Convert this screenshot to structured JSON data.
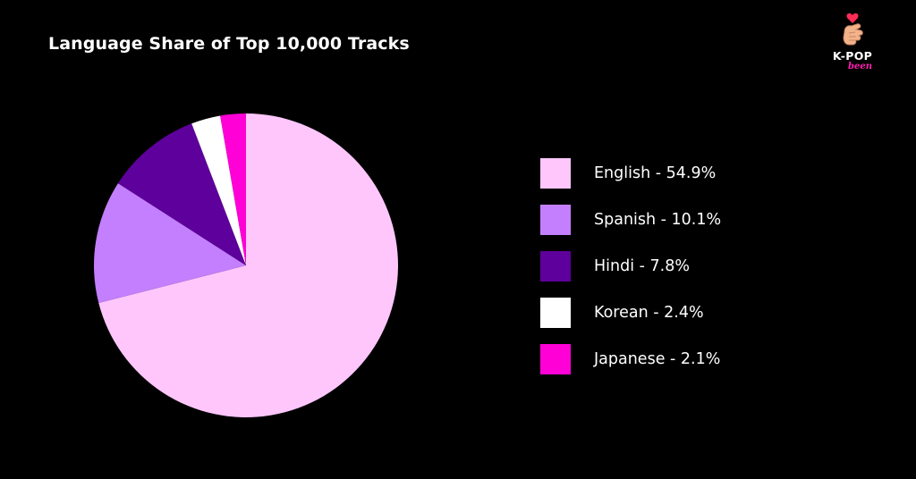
{
  "chart_data": {
    "type": "pie",
    "title": "Language Share of Top 10,000 Tracks",
    "legend_position": "right",
    "slices": [
      {
        "label": "English",
        "value": 54.9,
        "legend_text": "English - 54.9%",
        "color": "#fec6fb"
      },
      {
        "label": "Spanish",
        "value": 10.1,
        "legend_text": "Spanish - 10.1%",
        "color": "#c37ffd"
      },
      {
        "label": "Hindi",
        "value": 7.8,
        "legend_text": "Hindi - 7.8%",
        "color": "#5e009b"
      },
      {
        "label": "Korean",
        "value": 2.4,
        "legend_text": "Korean - 2.4%",
        "color": "#ffffff"
      },
      {
        "label": "Japanese",
        "value": 2.1,
        "legend_text": "Japanese - 2.1%",
        "color": "#ff00d7"
      }
    ]
  },
  "logo": {
    "text": "K-POP",
    "subtext": "been",
    "icon": "finger-heart-icon"
  },
  "colors": {
    "background": "#000000",
    "text": "#ffffff",
    "logo_accent": "#ff1fb4"
  }
}
